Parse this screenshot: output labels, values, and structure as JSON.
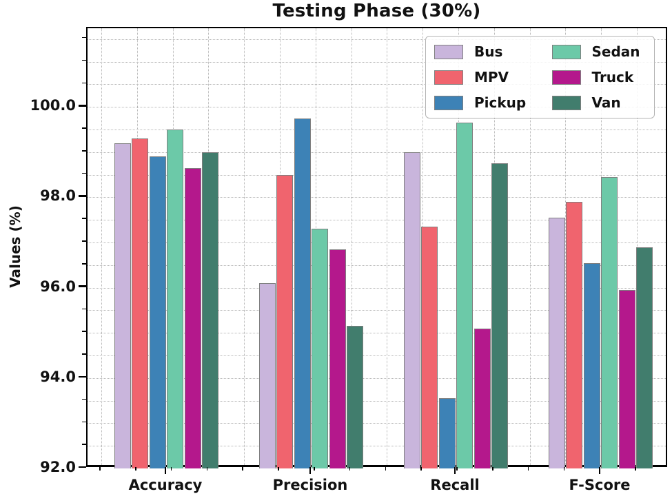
{
  "chart_data": {
    "type": "bar",
    "title": "Testing Phase (30%)",
    "ylabel": "Values (%)",
    "xlabel": "",
    "categories": [
      "Accuracy",
      "Precision",
      "Recall",
      "F-Score"
    ],
    "series": [
      {
        "name": "Bus",
        "color": "#c9b5dc",
        "values": [
          99.2,
          96.1,
          99.0,
          97.55
        ]
      },
      {
        "name": "MPV",
        "color": "#f0646e",
        "values": [
          99.3,
          98.5,
          97.35,
          97.9
        ]
      },
      {
        "name": "Pickup",
        "color": "#3d82b6",
        "values": [
          98.9,
          99.75,
          93.55,
          96.55
        ]
      },
      {
        "name": "Sedan",
        "color": "#6cc9a8",
        "values": [
          99.5,
          97.3,
          99.65,
          98.45
        ]
      },
      {
        "name": "Truck",
        "color": "#b4188c",
        "values": [
          98.65,
          96.85,
          95.1,
          95.95
        ]
      },
      {
        "name": "Van",
        "color": "#417d6d",
        "values": [
          99.0,
          95.15,
          98.75,
          96.9
        ]
      }
    ],
    "ylim": [
      92.0,
      101.74
    ],
    "yticks": [
      92.0,
      94.0,
      96.0,
      98.0,
      100.0
    ],
    "ytick_labels": [
      "92.0",
      "94.0",
      "96.0",
      "98.0",
      "100.0"
    ],
    "minor_grid_step": 0.5,
    "grid": true,
    "legend_position": "upper right",
    "legend_columns": [
      [
        "Bus",
        "MPV",
        "Pickup"
      ],
      [
        "Sedan",
        "Truck",
        "Van"
      ]
    ],
    "bar_edge_color": "#7f7f7f",
    "axis_color": "#000000",
    "grid_color": "#b4b4b4",
    "background_color": "#ffffff"
  }
}
